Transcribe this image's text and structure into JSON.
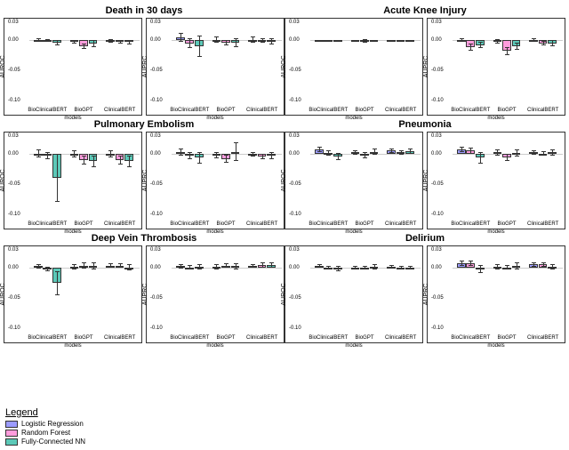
{
  "colors": {
    "lr": "#9c9cff",
    "rf": "#ff9cdc",
    "nn": "#5cc9b8",
    "border": "#333333"
  },
  "ylim": [
    -0.1,
    0.03
  ],
  "yticks": [
    -0.1,
    -0.05,
    0.0,
    0.03
  ],
  "xcats": [
    "BioClinicalBERT",
    "BioGPT",
    "ClinicalBERT"
  ],
  "xlabel": "models",
  "rows": [
    {
      "title_left": "Death in 30 days",
      "title_right": "Acute Knee Injury"
    },
    {
      "title_left": "Pulmonary Embolism",
      "title_right": "Pneumonia"
    },
    {
      "title_left": "Deep Vein Thrombosis",
      "title_right": "Delirium"
    }
  ],
  "legend": {
    "title": "Legend",
    "items": [
      {
        "label": "Logistic Regression",
        "color": "#9c9cff"
      },
      {
        "label": "Random Forest",
        "color": "#ff9cdc"
      },
      {
        "label": "Fully-Connected NN",
        "color": "#5cc9b8"
      }
    ]
  },
  "panels": [
    {
      "ylabel": "AUROC",
      "groups": [
        [
          {
            "v": 0.0,
            "e": 0.003
          },
          {
            "v": 0.0,
            "e": 0.002
          },
          {
            "v": -0.004,
            "e": 0.004
          }
        ],
        [
          {
            "v": -0.002,
            "e": 0.003
          },
          {
            "v": -0.01,
            "e": 0.005
          },
          {
            "v": -0.006,
            "e": 0.006
          }
        ],
        [
          {
            "v": -0.001,
            "e": 0.003
          },
          {
            "v": -0.003,
            "e": 0.003
          },
          {
            "v": -0.003,
            "e": 0.004
          }
        ]
      ]
    },
    {
      "ylabel": "AUPRC",
      "groups": [
        [
          {
            "v": 0.005,
            "e": 0.007
          },
          {
            "v": -0.005,
            "e": 0.008
          },
          {
            "v": -0.01,
            "e": 0.018
          }
        ],
        [
          {
            "v": 0.001,
            "e": 0.005
          },
          {
            "v": -0.004,
            "e": 0.005
          },
          {
            "v": -0.004,
            "e": 0.007
          }
        ],
        [
          {
            "v": 0.001,
            "e": 0.005
          },
          {
            "v": 0.0,
            "e": 0.004
          },
          {
            "v": -0.002,
            "e": 0.005
          }
        ]
      ]
    },
    {
      "ylabel": "AUROC",
      "groups": [
        [
          {
            "v": -0.001,
            "e": 0.002
          },
          {
            "v": -0.001,
            "e": 0.002
          },
          {
            "v": -0.001,
            "e": 0.002
          }
        ],
        [
          {
            "v": -0.001,
            "e": 0.002
          },
          {
            "v": -0.001,
            "e": 0.003
          },
          {
            "v": -0.001,
            "e": 0.002
          }
        ],
        [
          {
            "v": -0.001,
            "e": 0.002
          },
          {
            "v": -0.001,
            "e": 0.002
          },
          {
            "v": -0.001,
            "e": 0.002
          }
        ]
      ]
    },
    {
      "ylabel": "AUPRC",
      "groups": [
        [
          {
            "v": 0.001,
            "e": 0.003
          },
          {
            "v": -0.012,
            "e": 0.006
          },
          {
            "v": -0.008,
            "e": 0.005
          }
        ],
        [
          {
            "v": -0.002,
            "e": 0.004
          },
          {
            "v": -0.018,
            "e": 0.006
          },
          {
            "v": -0.01,
            "e": 0.006
          }
        ],
        [
          {
            "v": 0.0,
            "e": 0.003
          },
          {
            "v": -0.005,
            "e": 0.004
          },
          {
            "v": -0.005,
            "e": 0.005
          }
        ]
      ]
    },
    {
      "ylabel": "AUROC",
      "groups": [
        [
          {
            "v": 0.001,
            "e": 0.007
          },
          {
            "v": -0.002,
            "e": 0.006
          },
          {
            "v": -0.04,
            "e": 0.04
          }
        ],
        [
          {
            "v": 0.001,
            "e": 0.006
          },
          {
            "v": -0.01,
            "e": 0.008
          },
          {
            "v": -0.012,
            "e": 0.01
          }
        ],
        [
          {
            "v": 0.001,
            "e": 0.006
          },
          {
            "v": -0.01,
            "e": 0.007
          },
          {
            "v": -0.012,
            "e": 0.01
          }
        ]
      ]
    },
    {
      "ylabel": "AUPRC",
      "groups": [
        [
          {
            "v": 0.003,
            "e": 0.006
          },
          {
            "v": -0.003,
            "e": 0.006
          },
          {
            "v": -0.006,
            "e": 0.01
          }
        ],
        [
          {
            "v": -0.002,
            "e": 0.005
          },
          {
            "v": -0.008,
            "e": 0.007
          },
          {
            "v": 0.004,
            "e": 0.015
          }
        ],
        [
          {
            "v": 0.0,
            "e": 0.004
          },
          {
            "v": -0.004,
            "e": 0.005
          },
          {
            "v": -0.003,
            "e": 0.006
          }
        ]
      ]
    },
    {
      "ylabel": "AUROC",
      "groups": [
        [
          {
            "v": 0.008,
            "e": 0.004
          },
          {
            "v": 0.002,
            "e": 0.004
          },
          {
            "v": -0.004,
            "e": 0.006
          }
        ],
        [
          {
            "v": 0.003,
            "e": 0.004
          },
          {
            "v": -0.002,
            "e": 0.005
          },
          {
            "v": 0.004,
            "e": 0.005
          }
        ],
        [
          {
            "v": 0.006,
            "e": 0.004
          },
          {
            "v": 0.003,
            "e": 0.004
          },
          {
            "v": 0.005,
            "e": 0.004
          }
        ]
      ]
    },
    {
      "ylabel": "AUPRC",
      "groups": [
        [
          {
            "v": 0.008,
            "e": 0.005
          },
          {
            "v": 0.006,
            "e": 0.005
          },
          {
            "v": -0.006,
            "e": 0.01
          }
        ],
        [
          {
            "v": 0.003,
            "e": 0.005
          },
          {
            "v": -0.006,
            "e": 0.006
          },
          {
            "v": 0.002,
            "e": 0.006
          }
        ],
        [
          {
            "v": 0.003,
            "e": 0.004
          },
          {
            "v": 0.001,
            "e": 0.004
          },
          {
            "v": 0.003,
            "e": 0.005
          }
        ]
      ]
    },
    {
      "ylabel": "AUROC",
      "groups": [
        [
          {
            "v": 0.003,
            "e": 0.004
          },
          {
            "v": -0.002,
            "e": 0.004
          },
          {
            "v": -0.025,
            "e": 0.02
          }
        ],
        [
          {
            "v": 0.002,
            "e": 0.004
          },
          {
            "v": 0.004,
            "e": 0.005
          },
          {
            "v": 0.003,
            "e": 0.006
          }
        ],
        [
          {
            "v": 0.004,
            "e": 0.004
          },
          {
            "v": 0.004,
            "e": 0.004
          },
          {
            "v": 0.001,
            "e": 0.005
          }
        ]
      ]
    },
    {
      "ylabel": "AUPRC",
      "groups": [
        [
          {
            "v": 0.003,
            "e": 0.004
          },
          {
            "v": 0.001,
            "e": 0.004
          },
          {
            "v": 0.002,
            "e": 0.005
          }
        ],
        [
          {
            "v": 0.002,
            "e": 0.004
          },
          {
            "v": 0.004,
            "e": 0.004
          },
          {
            "v": 0.003,
            "e": 0.005
          }
        ],
        [
          {
            "v": 0.003,
            "e": 0.003
          },
          {
            "v": 0.005,
            "e": 0.004
          },
          {
            "v": 0.005,
            "e": 0.004
          }
        ]
      ]
    },
    {
      "ylabel": "AUROC",
      "groups": [
        [
          {
            "v": 0.003,
            "e": 0.003
          },
          {
            "v": 0.001,
            "e": 0.003
          },
          {
            "v": -0.001,
            "e": 0.004
          }
        ],
        [
          {
            "v": 0.001,
            "e": 0.003
          },
          {
            "v": 0.0,
            "e": 0.003
          },
          {
            "v": 0.002,
            "e": 0.004
          }
        ],
        [
          {
            "v": 0.002,
            "e": 0.003
          },
          {
            "v": 0.001,
            "e": 0.003
          },
          {
            "v": 0.001,
            "e": 0.003
          }
        ]
      ]
    },
    {
      "ylabel": "AUPRC",
      "groups": [
        [
          {
            "v": 0.008,
            "e": 0.005
          },
          {
            "v": 0.008,
            "e": 0.005
          },
          {
            "v": -0.002,
            "e": 0.007
          }
        ],
        [
          {
            "v": 0.002,
            "e": 0.004
          },
          {
            "v": 0.001,
            "e": 0.004
          },
          {
            "v": 0.004,
            "e": 0.006
          }
        ],
        [
          {
            "v": 0.006,
            "e": 0.004
          },
          {
            "v": 0.006,
            "e": 0.004
          },
          {
            "v": 0.002,
            "e": 0.005
          }
        ]
      ]
    }
  ]
}
